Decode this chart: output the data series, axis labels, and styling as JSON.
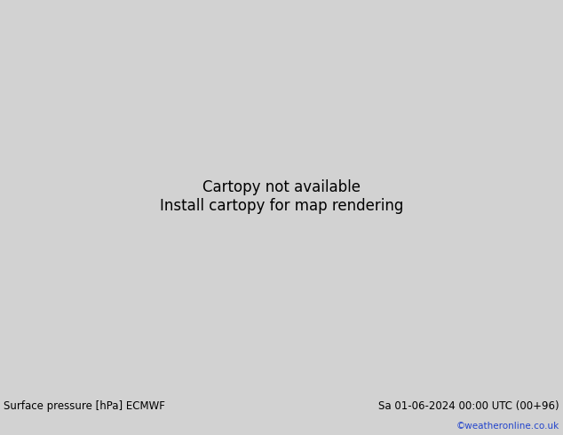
{
  "title_left": "Surface pressure [hPa] ECMWF",
  "title_right": "Sa 01-06-2024 00:00 UTC (00+96)",
  "credit": "©weatheronline.co.uk",
  "ocean_color": "#d2d2d2",
  "land_color": "#b5e8a0",
  "coast_color": "#888888",
  "blue": "#3355cc",
  "red": "#cc2222",
  "black": "#111111",
  "label_fontsize": 8.5,
  "credit_fontsize": 7.5,
  "credit_color": "#2244cc",
  "bottom_bg": "#d0d0d0",
  "map_extent": [
    -130,
    -30,
    -5,
    35
  ]
}
